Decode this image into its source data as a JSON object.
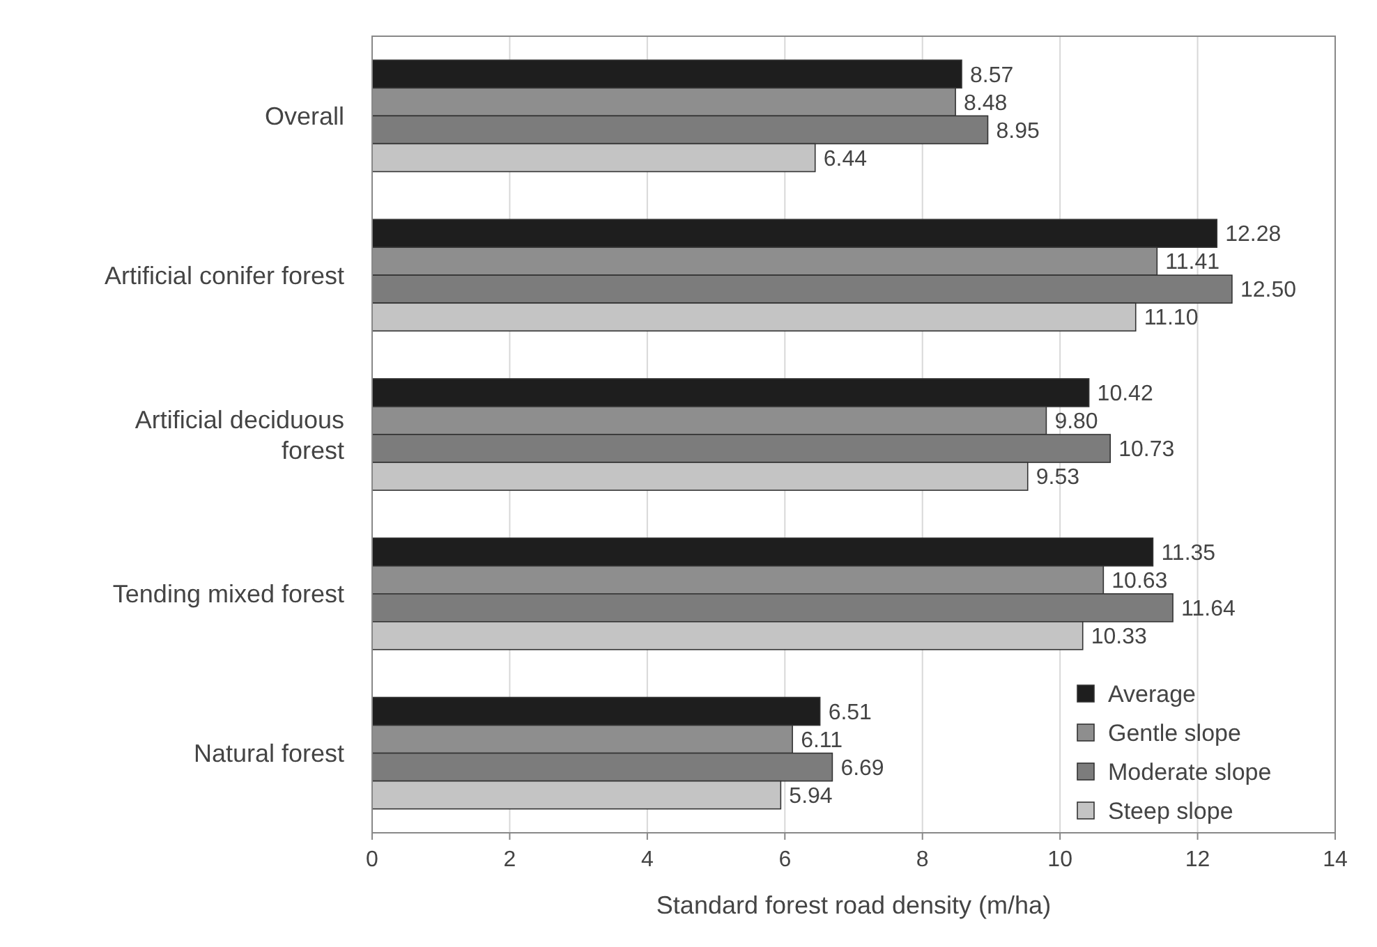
{
  "chart_data": {
    "type": "bar",
    "orientation": "horizontal",
    "xlabel": "Standard forest road density (m/ha)",
    "categories": [
      "Overall",
      "Artificial conifer forest",
      "Artificial deciduous forest",
      "Tending mixed forest",
      "Natural forest"
    ],
    "series": [
      {
        "name": "Average",
        "color": "#1e1e1e",
        "values": [
          8.57,
          12.28,
          10.42,
          11.35,
          6.51
        ],
        "value_labels": [
          "8.57",
          "12.28",
          "10.42",
          "11.35",
          "6.51"
        ]
      },
      {
        "name": "Gentle slope",
        "color": "#8e8e8e",
        "values": [
          8.48,
          11.41,
          9.8,
          10.63,
          6.11
        ],
        "value_labels": [
          "8.48",
          "11.41",
          "9.80",
          "10.63",
          "6.11"
        ]
      },
      {
        "name": "Moderate slope",
        "color": "#7c7c7c",
        "values": [
          8.95,
          12.5,
          10.73,
          11.64,
          6.69
        ],
        "value_labels": [
          "8.95",
          "12.50",
          "10.73",
          "11.64",
          "6.69"
        ]
      },
      {
        "name": "Steep slope",
        "color": "#c4c4c4",
        "values": [
          6.44,
          11.1,
          9.53,
          10.33,
          5.94
        ],
        "value_labels": [
          "6.44",
          "11.10",
          "9.53",
          "10.33",
          "5.94"
        ]
      }
    ],
    "xlim": [
      0,
      14
    ],
    "xticks": [
      0,
      2,
      4,
      6,
      8,
      10,
      12,
      14
    ],
    "grid": "x",
    "legend": "bottom right"
  }
}
